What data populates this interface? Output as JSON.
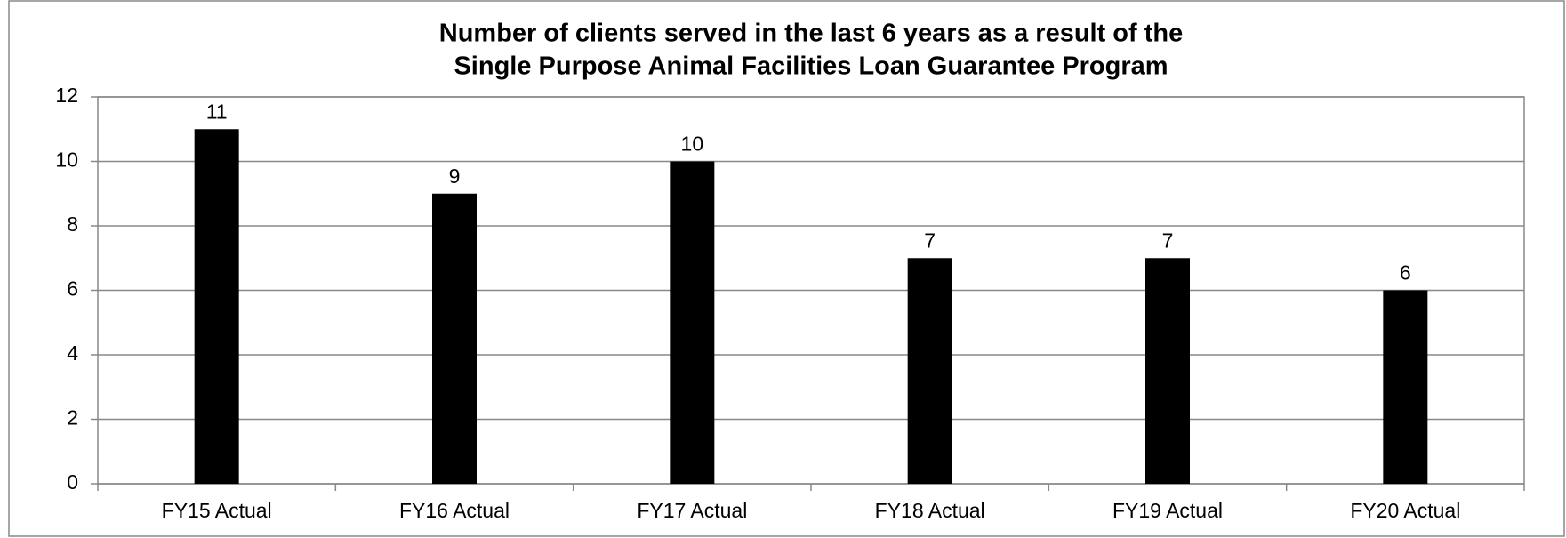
{
  "chart_data": {
    "type": "bar",
    "title": [
      "Number of clients served in the last 6 years as a result of the",
      "Single Purpose Animal Facilities Loan Guarantee Program"
    ],
    "categories": [
      "FY15 Actual",
      "FY16 Actual",
      "FY17 Actual",
      "FY18 Actual",
      "FY19 Actual",
      "FY20 Actual"
    ],
    "values": [
      11,
      9,
      10,
      7,
      7,
      6
    ],
    "color": "#000000",
    "ylim": [
      0,
      12
    ],
    "yticks": [
      0,
      2,
      4,
      6,
      8,
      10,
      12
    ],
    "grid": true
  }
}
